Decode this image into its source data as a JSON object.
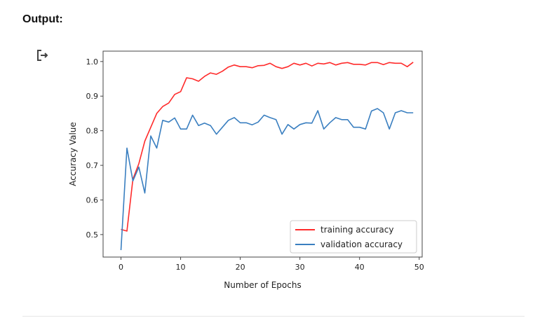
{
  "cell": {
    "heading": "Output:",
    "icon": "output-redirect-icon"
  },
  "chart_data": {
    "type": "line",
    "xlabel": "Number of Epochs",
    "ylabel": "Accuracy Value",
    "xlim": [
      -3,
      50.5
    ],
    "ylim": [
      0.435,
      1.03
    ],
    "xticks": [
      0,
      10,
      20,
      30,
      40,
      50
    ],
    "yticks": [
      0.5,
      0.6,
      0.7,
      0.8,
      0.9,
      1.0
    ],
    "xtick_labels": [
      "0",
      "10",
      "20",
      "30",
      "40",
      "50"
    ],
    "ytick_labels": [
      "0.5",
      "0.6",
      "0.7",
      "0.8",
      "0.9",
      "1.0"
    ],
    "grid": false,
    "legend_position": "lower-right",
    "x": [
      0,
      1,
      2,
      3,
      4,
      5,
      6,
      7,
      8,
      9,
      10,
      11,
      12,
      13,
      14,
      15,
      16,
      17,
      18,
      19,
      20,
      21,
      22,
      23,
      24,
      25,
      26,
      27,
      28,
      29,
      30,
      31,
      32,
      33,
      34,
      35,
      36,
      37,
      38,
      39,
      40,
      41,
      42,
      43,
      44,
      45,
      46,
      47,
      48,
      49
    ],
    "series": [
      {
        "name": "training accuracy",
        "color": "#ff2b2b",
        "values": [
          0.515,
          0.51,
          0.66,
          0.705,
          0.77,
          0.81,
          0.85,
          0.87,
          0.88,
          0.905,
          0.913,
          0.953,
          0.95,
          0.943,
          0.957,
          0.967,
          0.963,
          0.972,
          0.984,
          0.99,
          0.985,
          0.985,
          0.982,
          0.988,
          0.989,
          0.995,
          0.985,
          0.98,
          0.985,
          0.995,
          0.99,
          0.995,
          0.987,
          0.995,
          0.993,
          0.997,
          0.99,
          0.995,
          0.997,
          0.992,
          0.992,
          0.99,
          0.997,
          0.997,
          0.991,
          0.997,
          0.995,
          0.995,
          0.985,
          0.998
        ]
      },
      {
        "name": "validation accuracy",
        "color": "#3a7fc0",
        "values": [
          0.455,
          0.75,
          0.655,
          0.695,
          0.62,
          0.785,
          0.75,
          0.83,
          0.825,
          0.837,
          0.805,
          0.805,
          0.845,
          0.815,
          0.822,
          0.815,
          0.79,
          0.81,
          0.83,
          0.838,
          0.823,
          0.823,
          0.817,
          0.825,
          0.845,
          0.838,
          0.832,
          0.79,
          0.818,
          0.805,
          0.818,
          0.823,
          0.822,
          0.858,
          0.805,
          0.823,
          0.838,
          0.832,
          0.832,
          0.81,
          0.81,
          0.805,
          0.857,
          0.864,
          0.852,
          0.805,
          0.852,
          0.858,
          0.852,
          0.852
        ]
      }
    ]
  }
}
